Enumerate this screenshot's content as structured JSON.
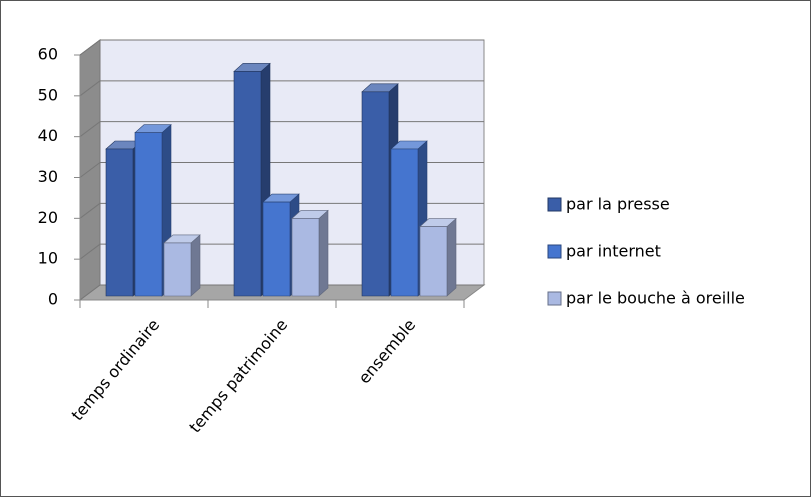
{
  "chart_data": {
    "type": "bar3d",
    "categories": [
      "temps ordinaire",
      "temps patrimoine",
      "ensemble"
    ],
    "series": [
      {
        "name": "par la presse",
        "color": "#3a5ea8",
        "values": [
          36,
          55,
          50
        ]
      },
      {
        "name": "par internet",
        "color": "#4575cf",
        "values": [
          40,
          23,
          36
        ]
      },
      {
        "name": "par le bouche à oreille",
        "color": "#aab9e2",
        "values": [
          13,
          19,
          17
        ]
      }
    ],
    "ylim": [
      0,
      60
    ],
    "yticks": [
      0,
      10,
      20,
      30,
      40,
      50,
      60
    ],
    "grid": true,
    "legend": "right"
  }
}
